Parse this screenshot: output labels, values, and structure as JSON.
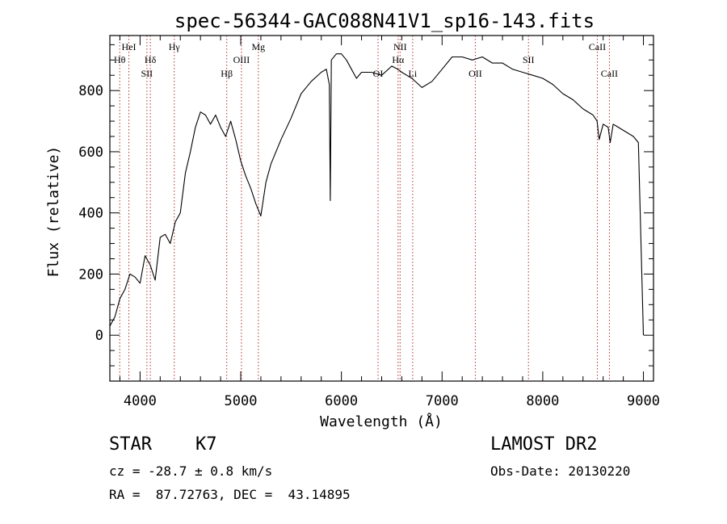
{
  "chart_data": {
    "type": "line",
    "title": "spec-56344-GAC088N41V1_sp16-143.fits",
    "xlabel": "Wavelength (Å)",
    "ylabel": "Flux (relative)",
    "xlim": [
      3700,
      9100
    ],
    "ylim": [
      -150,
      980
    ],
    "x_ticks": [
      4000,
      5000,
      6000,
      7000,
      8000,
      9000
    ],
    "y_ticks": [
      0,
      200,
      400,
      600,
      800
    ],
    "grid": false,
    "line_color": "#000000",
    "marker_line_color": "#b03030",
    "series": [
      {
        "x": [
          3700,
          3750,
          3800,
          3850,
          3900,
          3950,
          4000,
          4050,
          4100,
          4150,
          4200,
          4250,
          4300,
          4350,
          4400,
          4450,
          4500,
          4550,
          4600,
          4650,
          4700,
          4750,
          4800,
          4850,
          4900,
          4950,
          5000,
          5050,
          5100,
          5150,
          5200,
          5250,
          5300,
          5400,
          5500,
          5600,
          5700,
          5800,
          5850,
          5880,
          5890,
          5900,
          5950,
          6000,
          6050,
          6100,
          6150,
          6200,
          6300,
          6400,
          6500,
          6560,
          6600,
          6700,
          6800,
          6900,
          7000,
          7100,
          7200,
          7300,
          7400,
          7500,
          7600,
          7700,
          7800,
          7900,
          8000,
          8100,
          8200,
          8300,
          8400,
          8500,
          8540,
          8560,
          8600,
          8650,
          8670,
          8700,
          8800,
          8900,
          8950,
          9000
        ],
        "y": [
          30,
          60,
          120,
          150,
          200,
          190,
          170,
          260,
          230,
          180,
          320,
          330,
          300,
          370,
          400,
          530,
          600,
          680,
          730,
          720,
          690,
          720,
          680,
          650,
          700,
          640,
          570,
          520,
          480,
          430,
          390,
          500,
          560,
          640,
          710,
          790,
          830,
          860,
          870,
          820,
          440,
          900,
          920,
          920,
          900,
          870,
          840,
          860,
          860,
          850,
          880,
          870,
          860,
          840,
          810,
          830,
          870,
          910,
          910,
          900,
          910,
          890,
          890,
          870,
          860,
          850,
          840,
          820,
          790,
          770,
          740,
          720,
          700,
          640,
          690,
          680,
          630,
          690,
          670,
          650,
          630,
          0
        ]
      }
    ],
    "line_markers": [
      {
        "label": "HeI",
        "x": 3889,
        "row": "top"
      },
      {
        "label": "Hθ",
        "x": 3798,
        "row": "upper"
      },
      {
        "label": "Hδ",
        "x": 4102,
        "row": "upper"
      },
      {
        "label": "SII",
        "x": 4068,
        "row": "lower"
      },
      {
        "label": "Hγ",
        "x": 4340,
        "row": "top"
      },
      {
        "label": "Hβ",
        "x": 4861,
        "row": "lower"
      },
      {
        "label": "OIII",
        "x": 5007,
        "row": "upper"
      },
      {
        "label": "Mg",
        "x": 5175,
        "row": "top"
      },
      {
        "label": "OI",
        "x": 6364,
        "row": "lower"
      },
      {
        "label": "NII",
        "x": 6583,
        "row": "top"
      },
      {
        "label": "Hα",
        "x": 6563,
        "row": "upper"
      },
      {
        "label": "Li",
        "x": 6708,
        "row": "lower"
      },
      {
        "label": "OII",
        "x": 7330,
        "row": "lower"
      },
      {
        "label": "SII",
        "x": 7858,
        "row": "upper"
      },
      {
        "label": "CaII",
        "x": 8542,
        "row": "top"
      },
      {
        "label": "CaII",
        "x": 8662,
        "row": "lower"
      }
    ]
  },
  "info": {
    "object_type": "STAR",
    "subclass": "K7",
    "redshift_line": "cz = -28.7 ± 0.8 km/s",
    "coords_line": "RA =  87.72763, DEC =  43.14895",
    "survey": "LAMOST DR2",
    "obs_date_line": "Obs-Date: 20130220"
  }
}
